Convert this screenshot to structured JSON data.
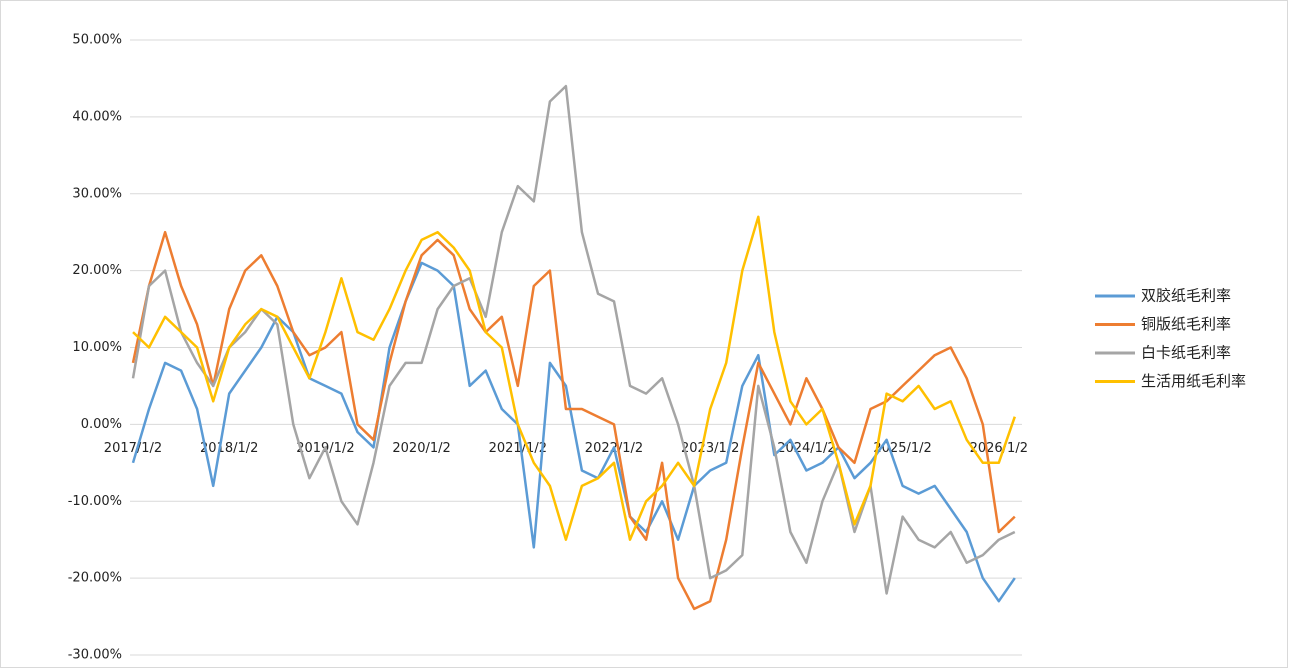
{
  "chart_data": {
    "type": "line",
    "categories": [
      "2017/1/2",
      null,
      null,
      null,
      null,
      null,
      "2018/1/2",
      null,
      null,
      null,
      null,
      null,
      "2019/1/2",
      null,
      null,
      null,
      null,
      null,
      "2020/1/2",
      null,
      null,
      null,
      null,
      null,
      "2021/1/2",
      null,
      null,
      null,
      null,
      null,
      "2022/1/2",
      null,
      null,
      null,
      null,
      null,
      "2023/1/2",
      null,
      null,
      null,
      null,
      null,
      "2024/1/2",
      null,
      null,
      null,
      null,
      null,
      "2025/1/2",
      null,
      null,
      null,
      null,
      null,
      "2026/1/2",
      null
    ],
    "series": [
      {
        "name": "双胶纸毛利率",
        "color": "#5b9bd5",
        "values": [
          -5,
          2,
          8,
          7,
          2,
          -8,
          4,
          7,
          10,
          14,
          12,
          6,
          5,
          4,
          -1,
          -3,
          10,
          16,
          21,
          20,
          18,
          5,
          7,
          2,
          0,
          -16,
          8,
          5,
          -6,
          -7,
          -3,
          -12,
          -14,
          -10,
          -15,
          -8,
          -6,
          -5,
          5,
          9,
          -4,
          -2,
          -6,
          -5,
          -3,
          -7,
          -5,
          -2,
          -8,
          -9,
          -8,
          -11,
          -14,
          -20,
          -23,
          -20
        ]
      },
      {
        "name": "铜版纸毛利率",
        "color": "#ed7d31",
        "values": [
          8,
          18,
          25,
          18,
          13,
          5,
          15,
          20,
          22,
          18,
          12,
          9,
          10,
          12,
          0,
          -2,
          8,
          16,
          22,
          24,
          22,
          15,
          12,
          14,
          5,
          18,
          20,
          2,
          2,
          1,
          0,
          -12,
          -15,
          -5,
          -20,
          -24,
          -23,
          -15,
          -3,
          8,
          4,
          0,
          6,
          2,
          -3,
          -5,
          2,
          3,
          5,
          7,
          9,
          10,
          6,
          0,
          -14,
          -12
        ]
      },
      {
        "name": "白卡纸毛利率",
        "color": "#a5a5a5",
        "values": [
          6,
          18,
          20,
          12,
          8,
          5,
          10,
          12,
          15,
          13,
          0,
          -7,
          -3,
          -10,
          -13,
          -5,
          5,
          8,
          8,
          15,
          18,
          19,
          14,
          25,
          31,
          29,
          42,
          44,
          25,
          17,
          16,
          5,
          4,
          6,
          0,
          -8,
          -20,
          -19,
          -17,
          5,
          -3,
          -14,
          -18,
          -10,
          -5,
          -14,
          -8,
          -22,
          -12,
          -15,
          -16,
          -14,
          -18,
          -17,
          -15,
          -14
        ]
      },
      {
        "name": "生活用纸毛利率",
        "color": "#ffc000",
        "values": [
          12,
          10,
          14,
          12,
          10,
          3,
          10,
          13,
          15,
          14,
          10,
          6,
          12,
          19,
          12,
          11,
          15,
          20,
          24,
          25,
          23,
          20,
          12,
          10,
          0,
          -5,
          -8,
          -15,
          -8,
          -7,
          -5,
          -15,
          -10,
          -8,
          -5,
          -8,
          2,
          8,
          20,
          27,
          12,
          3,
          0,
          2,
          -5,
          -13,
          -8,
          4,
          3,
          5,
          2,
          3,
          -2,
          -5,
          -5,
          1
        ]
      }
    ],
    "ylim": [
      -30,
      50
    ],
    "yticks": [
      {
        "value": -30,
        "label": "-30.00%"
      },
      {
        "value": -20,
        "label": "-20.00%"
      },
      {
        "value": -10,
        "label": "-10.00%"
      },
      {
        "value": 0,
        "label": "0.00%"
      },
      {
        "value": 10,
        "label": "10.00%"
      },
      {
        "value": 20,
        "label": "20.00%"
      },
      {
        "value": 30,
        "label": "30.00%"
      },
      {
        "value": 40,
        "label": "40.00%"
      },
      {
        "value": 50,
        "label": "50.00%"
      }
    ],
    "grid": true,
    "legend": "right"
  }
}
